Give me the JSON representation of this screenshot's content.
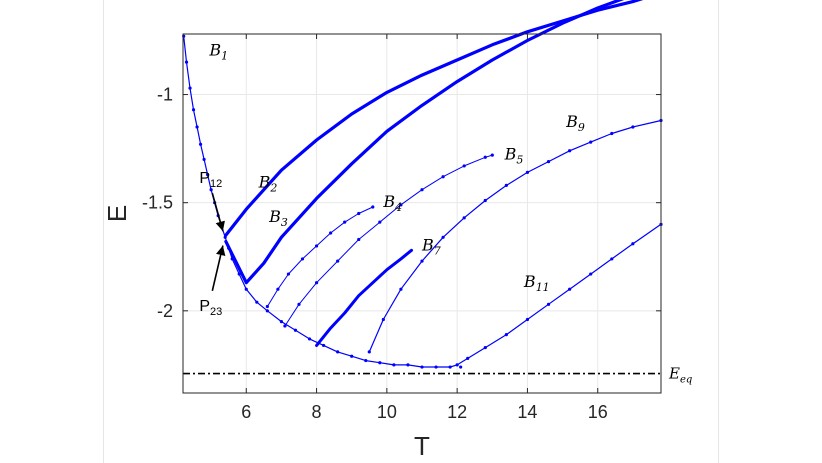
{
  "chart_data": {
    "type": "line",
    "xlabel": "T",
    "ylabel": "E",
    "xlim": [
      4.2,
      17.8
    ],
    "ylim": [
      -2.38,
      -0.72
    ],
    "xticks": [
      6,
      8,
      10,
      12,
      14,
      16
    ],
    "yticks": [
      -1,
      -1.5,
      -2
    ],
    "xtick_labels": [
      "6",
      "8",
      "10",
      "12",
      "14",
      "16"
    ],
    "ytick_labels": [
      "-1",
      "-1.5",
      "-2"
    ],
    "grid": true,
    "line_color": "#0000ff",
    "equilibrium": {
      "label": "E_eq",
      "label_main": "E",
      "label_sub": "eq",
      "value": -2.29,
      "style": "dash-dot",
      "color": "#000000"
    },
    "series": [
      {
        "name": "B1",
        "label_main": "B",
        "label_sub": "1",
        "width": 1.2,
        "markers": true,
        "label_pos": [
          4.95,
          -0.82
        ],
        "x": [
          4.22,
          4.3,
          4.4,
          4.5,
          4.6,
          4.7,
          4.8,
          4.9,
          5.0,
          5.1,
          5.2,
          5.3,
          5.4,
          5.5,
          5.6,
          5.8,
          6.0,
          6.3,
          6.6,
          7.0,
          7.4,
          7.8,
          8.2,
          8.6,
          9.0,
          9.4,
          9.8,
          10.2,
          10.6,
          11.0,
          11.4,
          11.8,
          12.0,
          12.3,
          12.8,
          13.4,
          14.0,
          14.6,
          15.2,
          15.8,
          16.4,
          17.0,
          17.8
        ],
        "y": [
          -0.73,
          -0.85,
          -0.97,
          -1.07,
          -1.15,
          -1.23,
          -1.3,
          -1.37,
          -1.44,
          -1.5,
          -1.56,
          -1.61,
          -1.66,
          -1.71,
          -1.76,
          -1.83,
          -1.9,
          -1.96,
          -2.0,
          -2.05,
          -2.09,
          -2.13,
          -2.16,
          -2.19,
          -2.21,
          -2.23,
          -2.24,
          -2.25,
          -2.25,
          -2.26,
          -2.26,
          -2.26,
          -2.25,
          -2.22,
          -2.17,
          -2.11,
          -2.04,
          -1.97,
          -1.9,
          -1.83,
          -1.76,
          -1.69,
          -1.6
        ]
      },
      {
        "name": "B2",
        "label_main": "B",
        "label_sub": "2",
        "width": 3.2,
        "markers": false,
        "label_pos": [
          6.35,
          -1.43
        ],
        "x": [
          5.42,
          6.0,
          7.0,
          8.0,
          9.0,
          10.0,
          11.0,
          12.0,
          13.0,
          14.0,
          15.0,
          16.0,
          17.0,
          17.4
        ],
        "y": [
          -1.65,
          -1.53,
          -1.35,
          -1.21,
          -1.09,
          -0.99,
          -0.91,
          -0.84,
          -0.77,
          -0.71,
          -0.66,
          -0.61,
          -0.57,
          -0.55
        ]
      },
      {
        "name": "B3",
        "label_main": "B",
        "label_sub": "3",
        "width": 3.2,
        "markers": false,
        "label_pos": [
          6.65,
          -1.59
        ],
        "x": [
          5.42,
          6.0,
          6.5,
          7.0,
          8.0,
          9.0,
          10.0,
          11.0,
          12.0,
          13.0,
          14.0,
          15.0,
          16.0,
          17.0,
          17.8
        ],
        "y": [
          -1.68,
          -1.87,
          -1.78,
          -1.66,
          -1.48,
          -1.32,
          -1.17,
          -1.05,
          -0.94,
          -0.84,
          -0.75,
          -0.67,
          -0.6,
          -0.54,
          -0.5
        ]
      },
      {
        "name": "B4",
        "label_main": "B",
        "label_sub": "4",
        "width": 1.0,
        "markers": true,
        "label_pos": [
          9.9,
          -1.52
        ],
        "x": [
          6.6,
          6.9,
          7.2,
          7.6,
          8.0,
          8.4,
          8.8,
          9.2,
          9.6
        ],
        "y": [
          -1.98,
          -1.9,
          -1.83,
          -1.76,
          -1.7,
          -1.64,
          -1.59,
          -1.55,
          -1.52
        ]
      },
      {
        "name": "B5",
        "label_main": "B",
        "label_sub": "5",
        "width": 1.0,
        "markers": true,
        "label_pos": [
          13.35,
          -1.3
        ],
        "x": [
          7.1,
          7.5,
          8.0,
          8.6,
          9.2,
          9.8,
          10.4,
          11.0,
          11.6,
          12.2,
          12.8,
          13.0
        ],
        "y": [
          -2.07,
          -1.97,
          -1.87,
          -1.77,
          -1.67,
          -1.59,
          -1.51,
          -1.44,
          -1.38,
          -1.33,
          -1.29,
          -1.28
        ]
      },
      {
        "name": "B7",
        "label_main": "B",
        "label_sub": "7",
        "width": 3.0,
        "markers": false,
        "label_pos": [
          11.0,
          -1.72
        ],
        "x": [
          8.0,
          8.4,
          8.8,
          9.2,
          9.6,
          10.0,
          10.4,
          10.7
        ],
        "y": [
          -2.16,
          -2.08,
          -2.01,
          -1.93,
          -1.87,
          -1.81,
          -1.76,
          -1.72
        ]
      },
      {
        "name": "B9",
        "label_main": "B",
        "label_sub": "9",
        "width": 1.2,
        "markers": true,
        "label_pos": [
          15.1,
          -1.15
        ],
        "x": [
          9.5,
          9.9,
          10.4,
          11.0,
          11.6,
          12.2,
          12.8,
          13.4,
          14.0,
          14.6,
          15.2,
          15.8,
          16.4,
          17.0,
          17.8
        ],
        "y": [
          -2.19,
          -2.04,
          -1.9,
          -1.77,
          -1.66,
          -1.57,
          -1.49,
          -1.42,
          -1.36,
          -1.31,
          -1.26,
          -1.22,
          -1.18,
          -1.15,
          -1.12
        ]
      },
      {
        "name": "B11",
        "label_main": "B",
        "label_sub": "11",
        "width": 1.2,
        "markers": true,
        "label_pos": [
          13.9,
          -1.89
        ],
        "x": [
          12.1
        ],
        "y": [
          -2.26
        ]
      }
    ],
    "annotations": [
      {
        "label_main": "P",
        "label_sub": "12",
        "point": [
          5.42,
          -1.65
        ],
        "label_pos": [
          4.75,
          -1.41
        ]
      },
      {
        "label_main": "P",
        "label_sub": "23",
        "point": [
          5.42,
          -1.68
        ],
        "label_pos": [
          4.75,
          -2.0
        ]
      }
    ]
  }
}
